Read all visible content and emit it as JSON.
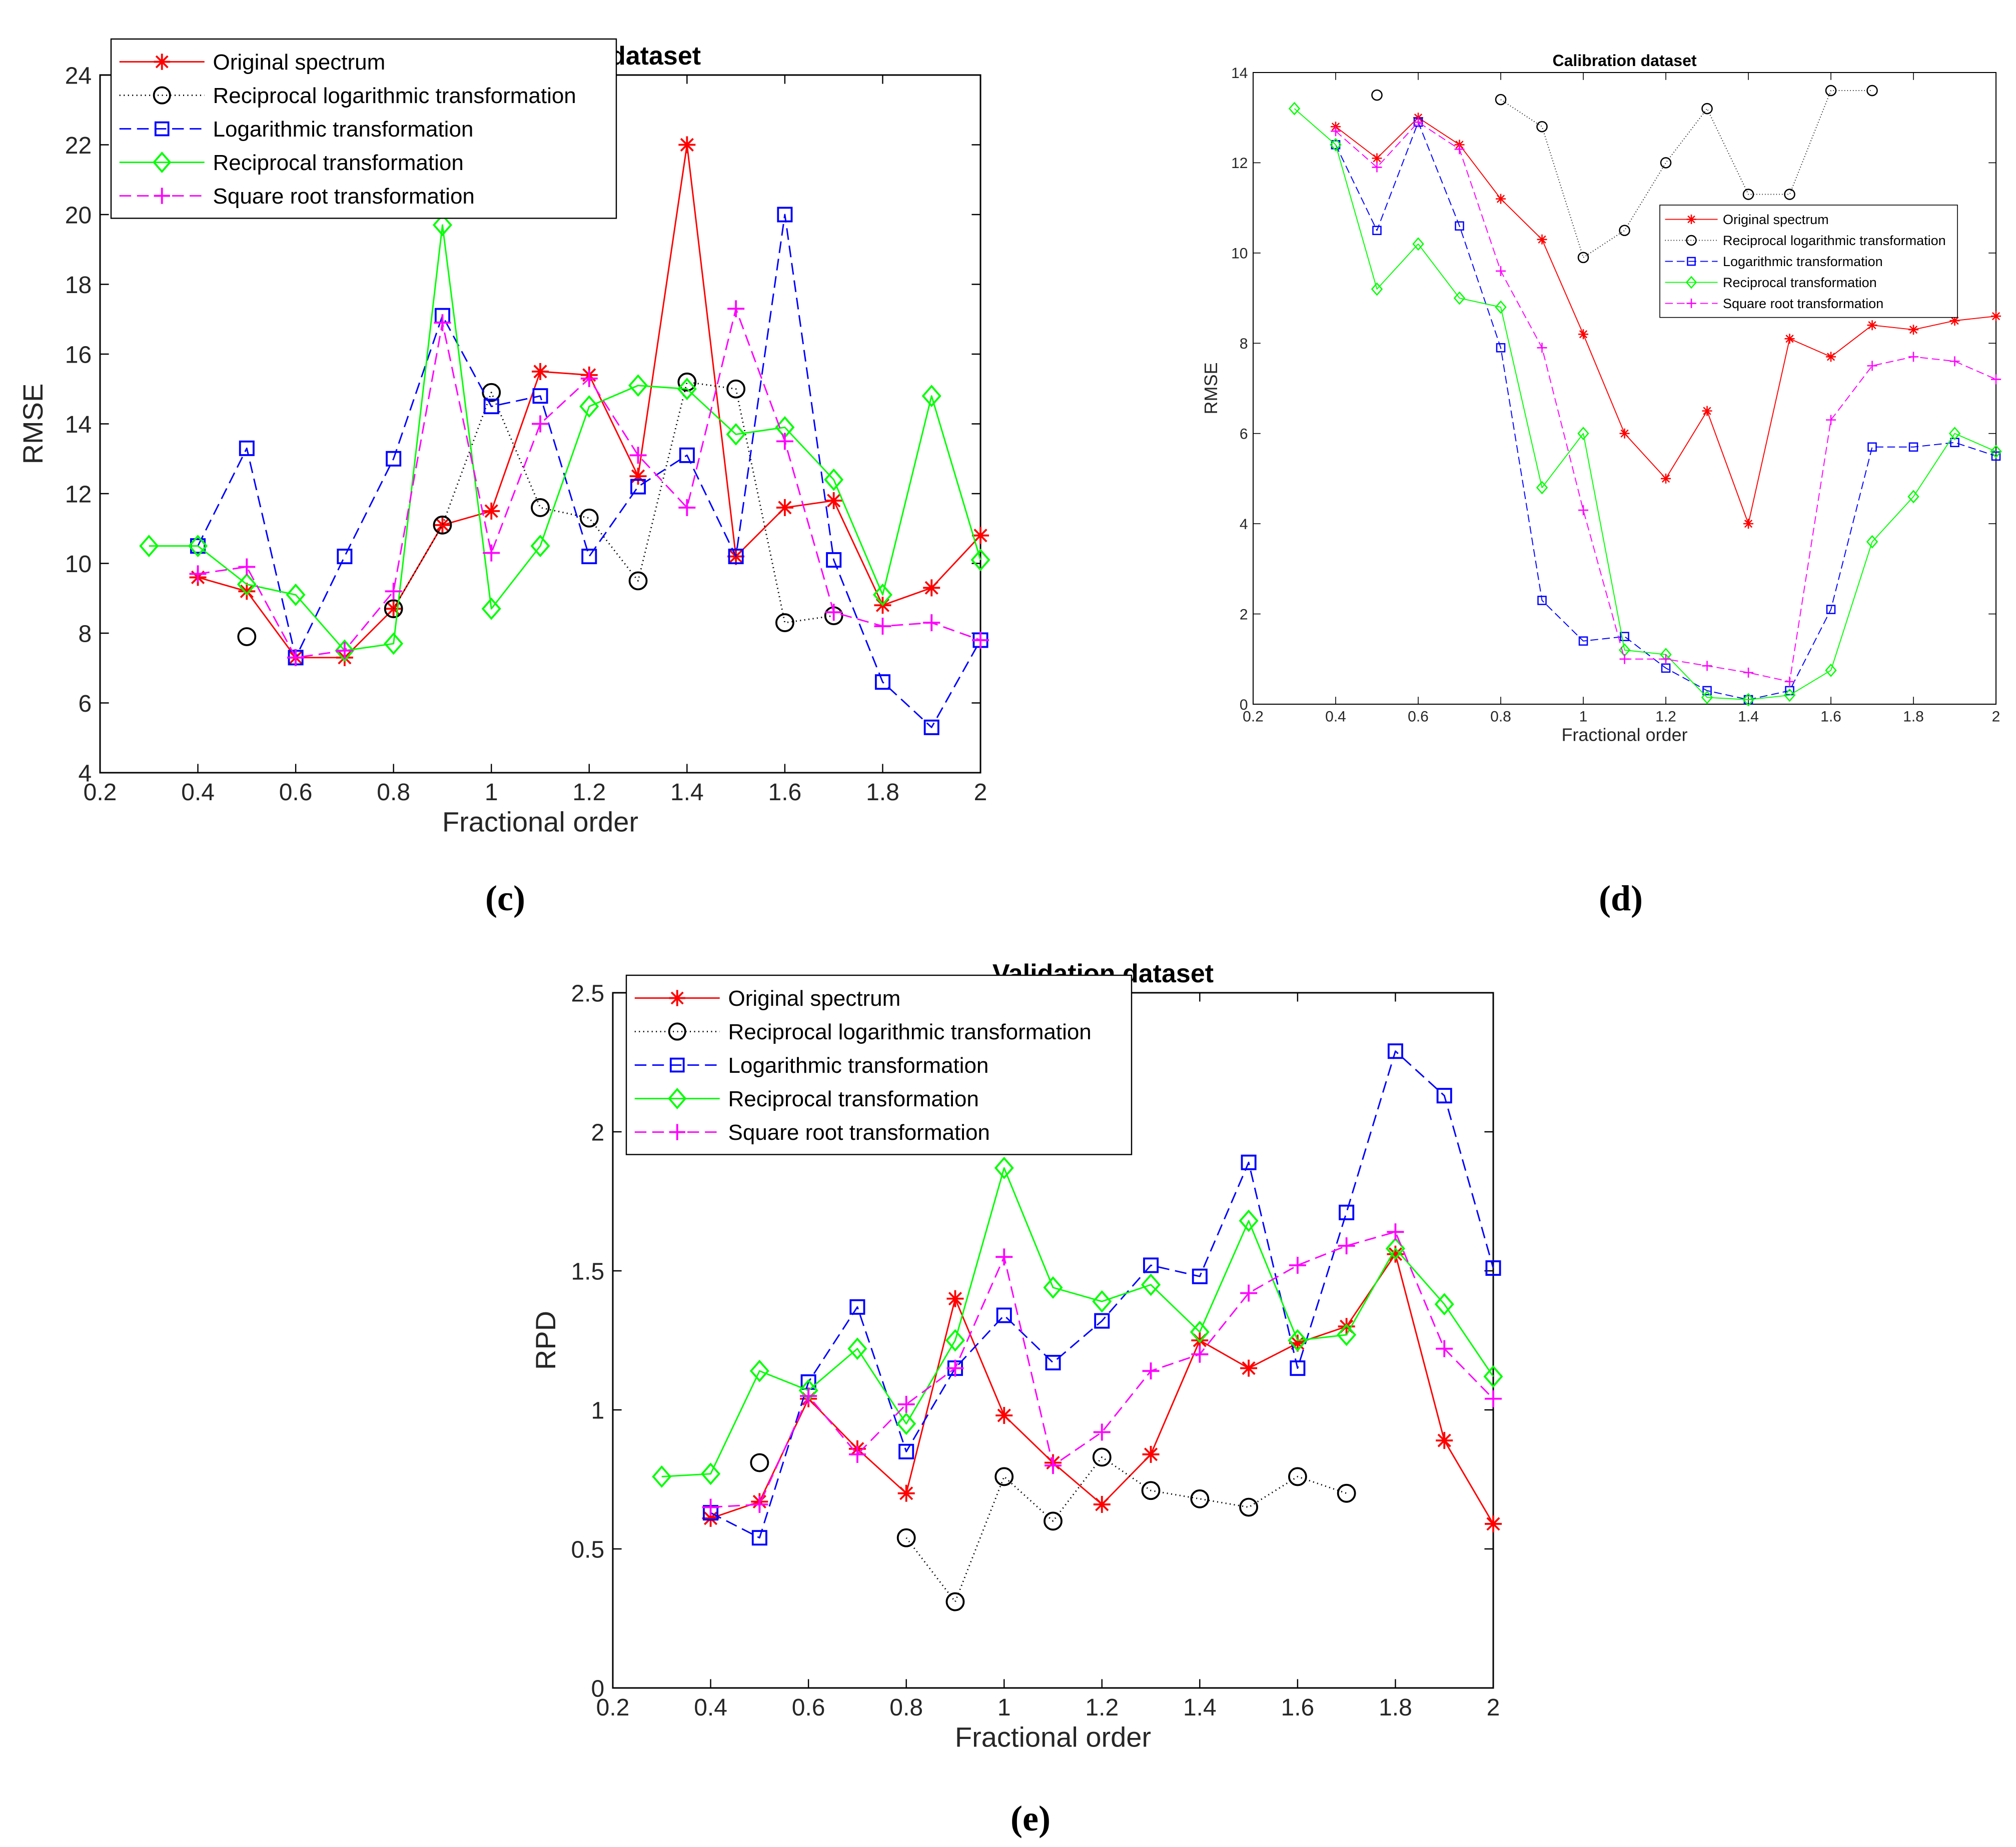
{
  "figure": {
    "panel_labels": [
      "(c)",
      "(d)",
      "(e)"
    ]
  },
  "chart_data": [
    {
      "id": "c",
      "type": "line",
      "title": "Validation dataset",
      "xlabel": "Fractional order",
      "ylabel": "RMSE",
      "xlim": [
        0.2,
        2.0
      ],
      "ylim": [
        4,
        24
      ],
      "xticks": [
        "0.2",
        "0.4",
        "0.6",
        "0.8",
        "1",
        "1.2",
        "1.4",
        "1.6",
        "1.8",
        "2"
      ],
      "yticks": [
        "4",
        "6",
        "8",
        "10",
        "12",
        "14",
        "16",
        "18",
        "20",
        "22",
        "24"
      ],
      "x": [
        0.3,
        0.4,
        0.5,
        0.6,
        0.7,
        0.8,
        0.9,
        1.0,
        1.1,
        1.2,
        1.3,
        1.4,
        1.5,
        1.6,
        1.7,
        1.8,
        1.9,
        2.0
      ],
      "legend_position": "top-left",
      "series": [
        {
          "name": "Original spectrum",
          "color": "#ff0000",
          "dash": "solid",
          "marker": "asterisk",
          "values": [
            null,
            9.6,
            9.2,
            7.3,
            7.3,
            8.7,
            11.1,
            11.5,
            15.5,
            15.4,
            12.5,
            22.0,
            10.2,
            11.6,
            11.8,
            8.8,
            9.3,
            10.8
          ]
        },
        {
          "name": "Reciprocal logarithmic transformation",
          "color": "#000000",
          "dash": "dotted",
          "marker": "circle",
          "values": [
            null,
            null,
            7.9,
            null,
            null,
            8.7,
            11.1,
            14.9,
            11.6,
            11.3,
            9.5,
            15.2,
            15.0,
            8.3,
            8.5,
            null,
            null,
            null
          ]
        },
        {
          "name": "Logarithmic transformation",
          "color": "#0000ff",
          "dash": "dashed",
          "marker": "square",
          "values": [
            null,
            10.5,
            13.3,
            7.3,
            10.2,
            13.0,
            17.1,
            14.5,
            14.8,
            10.2,
            12.2,
            13.1,
            10.2,
            20.0,
            10.1,
            6.6,
            5.3,
            7.8
          ]
        },
        {
          "name": "Reciprocal transformation",
          "color": "#00ff00",
          "dash": "solid",
          "marker": "diamond",
          "values": [
            10.5,
            10.5,
            9.4,
            9.1,
            7.5,
            7.7,
            19.7,
            8.7,
            10.5,
            14.5,
            15.1,
            15.0,
            13.7,
            13.9,
            12.4,
            9.1,
            14.8,
            10.1
          ]
        },
        {
          "name": "Square root transformation",
          "color": "#ff00ff",
          "dash": "dashed",
          "marker": "plus",
          "values": [
            null,
            9.7,
            9.9,
            7.3,
            7.5,
            9.2,
            16.9,
            10.3,
            14.0,
            15.3,
            13.1,
            11.6,
            17.3,
            13.5,
            8.6,
            8.2,
            8.3,
            7.8
          ]
        }
      ]
    },
    {
      "id": "d",
      "type": "line",
      "title": "Calibration dataset",
      "xlabel": "Fractional order",
      "ylabel": "RMSE",
      "xlim": [
        0.2,
        2.0
      ],
      "ylim": [
        0,
        14
      ],
      "xticks": [
        "0.2",
        "0.4",
        "0.6",
        "0.8",
        "1",
        "1.2",
        "1.4",
        "1.6",
        "1.8",
        "2"
      ],
      "yticks": [
        "0",
        "2",
        "4",
        "6",
        "8",
        "10",
        "12",
        "14"
      ],
      "x": [
        0.3,
        0.4,
        0.5,
        0.6,
        0.7,
        0.8,
        0.9,
        1.0,
        1.1,
        1.2,
        1.3,
        1.4,
        1.5,
        1.6,
        1.7,
        1.8,
        1.9,
        2.0
      ],
      "legend_position": "top-right",
      "series": [
        {
          "name": "Original spectrum",
          "color": "#ff0000",
          "dash": "solid",
          "marker": "asterisk",
          "values": [
            null,
            12.8,
            12.1,
            13.0,
            12.4,
            11.2,
            10.3,
            8.2,
            6.0,
            5.0,
            6.5,
            4.0,
            8.1,
            7.7,
            8.4,
            8.3,
            8.5,
            8.6
          ]
        },
        {
          "name": "Reciprocal logarithmic transformation",
          "color": "#000000",
          "dash": "dotted",
          "marker": "circle",
          "values": [
            null,
            null,
            13.5,
            null,
            null,
            13.4,
            12.8,
            9.9,
            10.5,
            12.0,
            13.2,
            11.3,
            11.3,
            13.6,
            13.6,
            null,
            null,
            null
          ]
        },
        {
          "name": "Logarithmic transformation",
          "color": "#0000ff",
          "dash": "dashed",
          "marker": "square",
          "values": [
            null,
            12.4,
            10.5,
            12.9,
            10.6,
            7.9,
            2.3,
            1.4,
            1.5,
            0.8,
            0.3,
            0.1,
            0.3,
            2.1,
            5.7,
            5.7,
            5.8,
            5.5
          ]
        },
        {
          "name": "Reciprocal transformation",
          "color": "#00ff00",
          "dash": "solid",
          "marker": "diamond",
          "values": [
            13.2,
            12.4,
            9.2,
            10.2,
            9.0,
            8.8,
            4.8,
            6.0,
            1.2,
            1.1,
            0.15,
            0.1,
            0.2,
            0.75,
            3.6,
            4.6,
            6.0,
            5.6
          ]
        },
        {
          "name": "Square root transformation",
          "color": "#ff00ff",
          "dash": "dashed",
          "marker": "plus",
          "values": [
            null,
            12.7,
            11.9,
            12.9,
            12.3,
            9.6,
            7.9,
            4.3,
            1.0,
            1.0,
            0.85,
            0.7,
            0.5,
            6.3,
            7.5,
            7.7,
            7.6,
            7.2
          ]
        }
      ]
    },
    {
      "id": "e",
      "type": "line",
      "title": "Validation dataset",
      "xlabel": "Fractional order",
      "ylabel": "RPD",
      "xlim": [
        0.2,
        2.0
      ],
      "ylim": [
        0,
        2.5
      ],
      "xticks": [
        "0.2",
        "0.4",
        "0.6",
        "0.8",
        "1",
        "1.2",
        "1.4",
        "1.6",
        "1.8",
        "2"
      ],
      "yticks": [
        "0",
        "0.5",
        "1",
        "1.5",
        "2",
        "2.5"
      ],
      "x": [
        0.3,
        0.4,
        0.5,
        0.6,
        0.7,
        0.8,
        0.9,
        1.0,
        1.1,
        1.2,
        1.3,
        1.4,
        1.5,
        1.6,
        1.7,
        1.8,
        1.9,
        2.0
      ],
      "legend_position": "top-left",
      "series": [
        {
          "name": "Original spectrum",
          "color": "#ff0000",
          "dash": "solid",
          "marker": "asterisk",
          "values": [
            null,
            0.61,
            0.67,
            1.04,
            0.86,
            0.7,
            1.4,
            0.98,
            0.81,
            0.66,
            0.84,
            1.25,
            1.15,
            1.24,
            1.3,
            1.56,
            0.89,
            0.59
          ]
        },
        {
          "name": "Reciprocal logarithmic transformation",
          "color": "#000000",
          "dash": "dotted",
          "marker": "circle",
          "values": [
            null,
            null,
            0.81,
            null,
            null,
            0.54,
            0.31,
            0.76,
            0.6,
            0.83,
            0.71,
            0.68,
            0.65,
            0.76,
            0.7,
            null,
            null,
            null
          ]
        },
        {
          "name": "Logarithmic transformation",
          "color": "#0000ff",
          "dash": "dashed",
          "marker": "square",
          "values": [
            null,
            0.63,
            0.54,
            1.1,
            1.37,
            0.85,
            1.15,
            1.34,
            1.17,
            1.32,
            1.52,
            1.48,
            1.89,
            1.15,
            1.71,
            2.29,
            2.13,
            1.51
          ]
        },
        {
          "name": "Reciprocal transformation",
          "color": "#00ff00",
          "dash": "solid",
          "marker": "diamond",
          "values": [
            0.76,
            0.77,
            1.14,
            1.07,
            1.22,
            0.95,
            1.25,
            1.87,
            1.44,
            1.39,
            1.45,
            1.28,
            1.68,
            1.25,
            1.27,
            1.58,
            1.38,
            1.12
          ]
        },
        {
          "name": "Square root transformation",
          "color": "#ff00ff",
          "dash": "dashed",
          "marker": "plus",
          "values": [
            null,
            0.65,
            0.66,
            1.05,
            0.84,
            1.02,
            1.15,
            1.55,
            0.8,
            0.92,
            1.14,
            1.2,
            1.42,
            1.52,
            1.59,
            1.64,
            1.22,
            1.04
          ]
        }
      ]
    }
  ]
}
